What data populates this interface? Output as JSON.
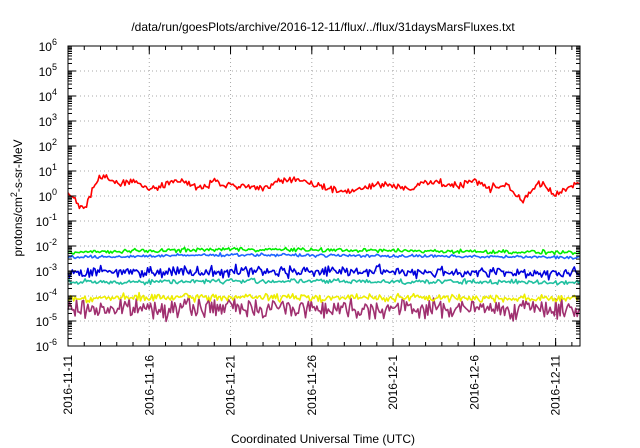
{
  "chart_data": {
    "type": "line",
    "title": "/data/run/goesPlots/archive/2016-12-11/flux/../flux/31daysMarsFluxes.txt",
    "xlabel": "Coordinated Universal Time (UTC)",
    "ylabel": {
      "base": "protons/cm",
      "sup": "2",
      "rest": "-s-sr-MeV"
    },
    "yscale": "log",
    "ylim": [
      1e-06,
      1000000.0
    ],
    "xlim": [
      "2016-11-11",
      "2016-12-12T12:00"
    ],
    "grid": true,
    "y_ticks": [
      {
        "value": 1e-06,
        "base": "10",
        "exp": "-6"
      },
      {
        "value": 1e-05,
        "base": "10",
        "exp": "-5"
      },
      {
        "value": 0.0001,
        "base": "10",
        "exp": "-4"
      },
      {
        "value": 0.001,
        "base": "10",
        "exp": "-3"
      },
      {
        "value": 0.01,
        "base": "10",
        "exp": "-2"
      },
      {
        "value": 0.1,
        "base": "10",
        "exp": "-1"
      },
      {
        "value": 1,
        "base": "10",
        "exp": "0"
      },
      {
        "value": 10,
        "base": "10",
        "exp": "1"
      },
      {
        "value": 100,
        "base": "10",
        "exp": "2"
      },
      {
        "value": 1000,
        "base": "10",
        "exp": "3"
      },
      {
        "value": 10000,
        "base": "10",
        "exp": "4"
      },
      {
        "value": 100000,
        "base": "10",
        "exp": "5"
      },
      {
        "value": 1000000,
        "base": "10",
        "exp": "6"
      }
    ],
    "x_ticks": [
      "2016-11-11",
      "2016-11-16",
      "2016-11-21",
      "2016-11-26",
      "2016-12-1",
      "2016-12-6",
      "2016-12-11"
    ],
    "series": [
      {
        "color": "#ff0000",
        "x": [
          "2016-11-11",
          "2016-11-12",
          "2016-11-13",
          "2016-11-14",
          "2016-11-15",
          "2016-11-16",
          "2016-11-17",
          "2016-11-18",
          "2016-11-19",
          "2016-11-20",
          "2016-11-21",
          "2016-11-22",
          "2016-11-23",
          "2016-11-24",
          "2016-11-25",
          "2016-11-26",
          "2016-11-27",
          "2016-11-28",
          "2016-11-29",
          "2016-11-30",
          "2016-12-01",
          "2016-12-02",
          "2016-12-03",
          "2016-12-04",
          "2016-12-05",
          "2016-12-06",
          "2016-12-07",
          "2016-12-08",
          "2016-12-09",
          "2016-12-10",
          "2016-12-11",
          "2016-12-12"
        ],
        "values": [
          1.0,
          0.3,
          7.0,
          3.0,
          4.0,
          2.0,
          3.0,
          4.5,
          2.0,
          4.0,
          2.5,
          3.0,
          2.0,
          3.5,
          5.0,
          3.0,
          2.0,
          1.5,
          2.0,
          3.0,
          2.5,
          2.0,
          4.0,
          3.0,
          2.5,
          4.0,
          2.0,
          3.0,
          0.6,
          3.5,
          1.0,
          3.0
        ],
        "variability": 0.15
      },
      {
        "color": "#00ee00",
        "x": [
          "2016-11-11",
          "2016-11-21",
          "2016-12-01",
          "2016-12-12"
        ],
        "values": [
          0.0055,
          0.0075,
          0.0065,
          0.0055
        ],
        "variability": 0.08
      },
      {
        "color": "#1e64ff",
        "x": [
          "2016-11-11",
          "2016-11-21",
          "2016-12-01",
          "2016-12-12"
        ],
        "values": [
          0.0035,
          0.0045,
          0.004,
          0.0035
        ],
        "variability": 0.06
      },
      {
        "color": "#0000dd",
        "x": [
          "2016-11-11",
          "2016-11-21",
          "2016-12-01",
          "2016-12-12"
        ],
        "values": [
          0.0009,
          0.001,
          0.00095,
          0.0008
        ],
        "variability": 0.22
      },
      {
        "color": "#20c0a0",
        "x": [
          "2016-11-11",
          "2016-11-21",
          "2016-12-01",
          "2016-12-12"
        ],
        "values": [
          0.00035,
          0.0004,
          0.00038,
          0.00035
        ],
        "variability": 0.1
      },
      {
        "color": "#eeee00",
        "x": [
          "2016-11-11",
          "2016-11-21",
          "2016-12-01",
          "2016-12-12"
        ],
        "values": [
          8e-05,
          9e-05,
          8.5e-05,
          8e-05
        ],
        "variability": 0.15
      },
      {
        "color": "#a03070",
        "x": [
          "2016-11-11",
          "2016-11-21",
          "2016-12-01",
          "2016-12-12"
        ],
        "values": [
          3e-05,
          3.5e-05,
          3.2e-05,
          3e-05
        ],
        "variability": 0.38
      }
    ]
  }
}
